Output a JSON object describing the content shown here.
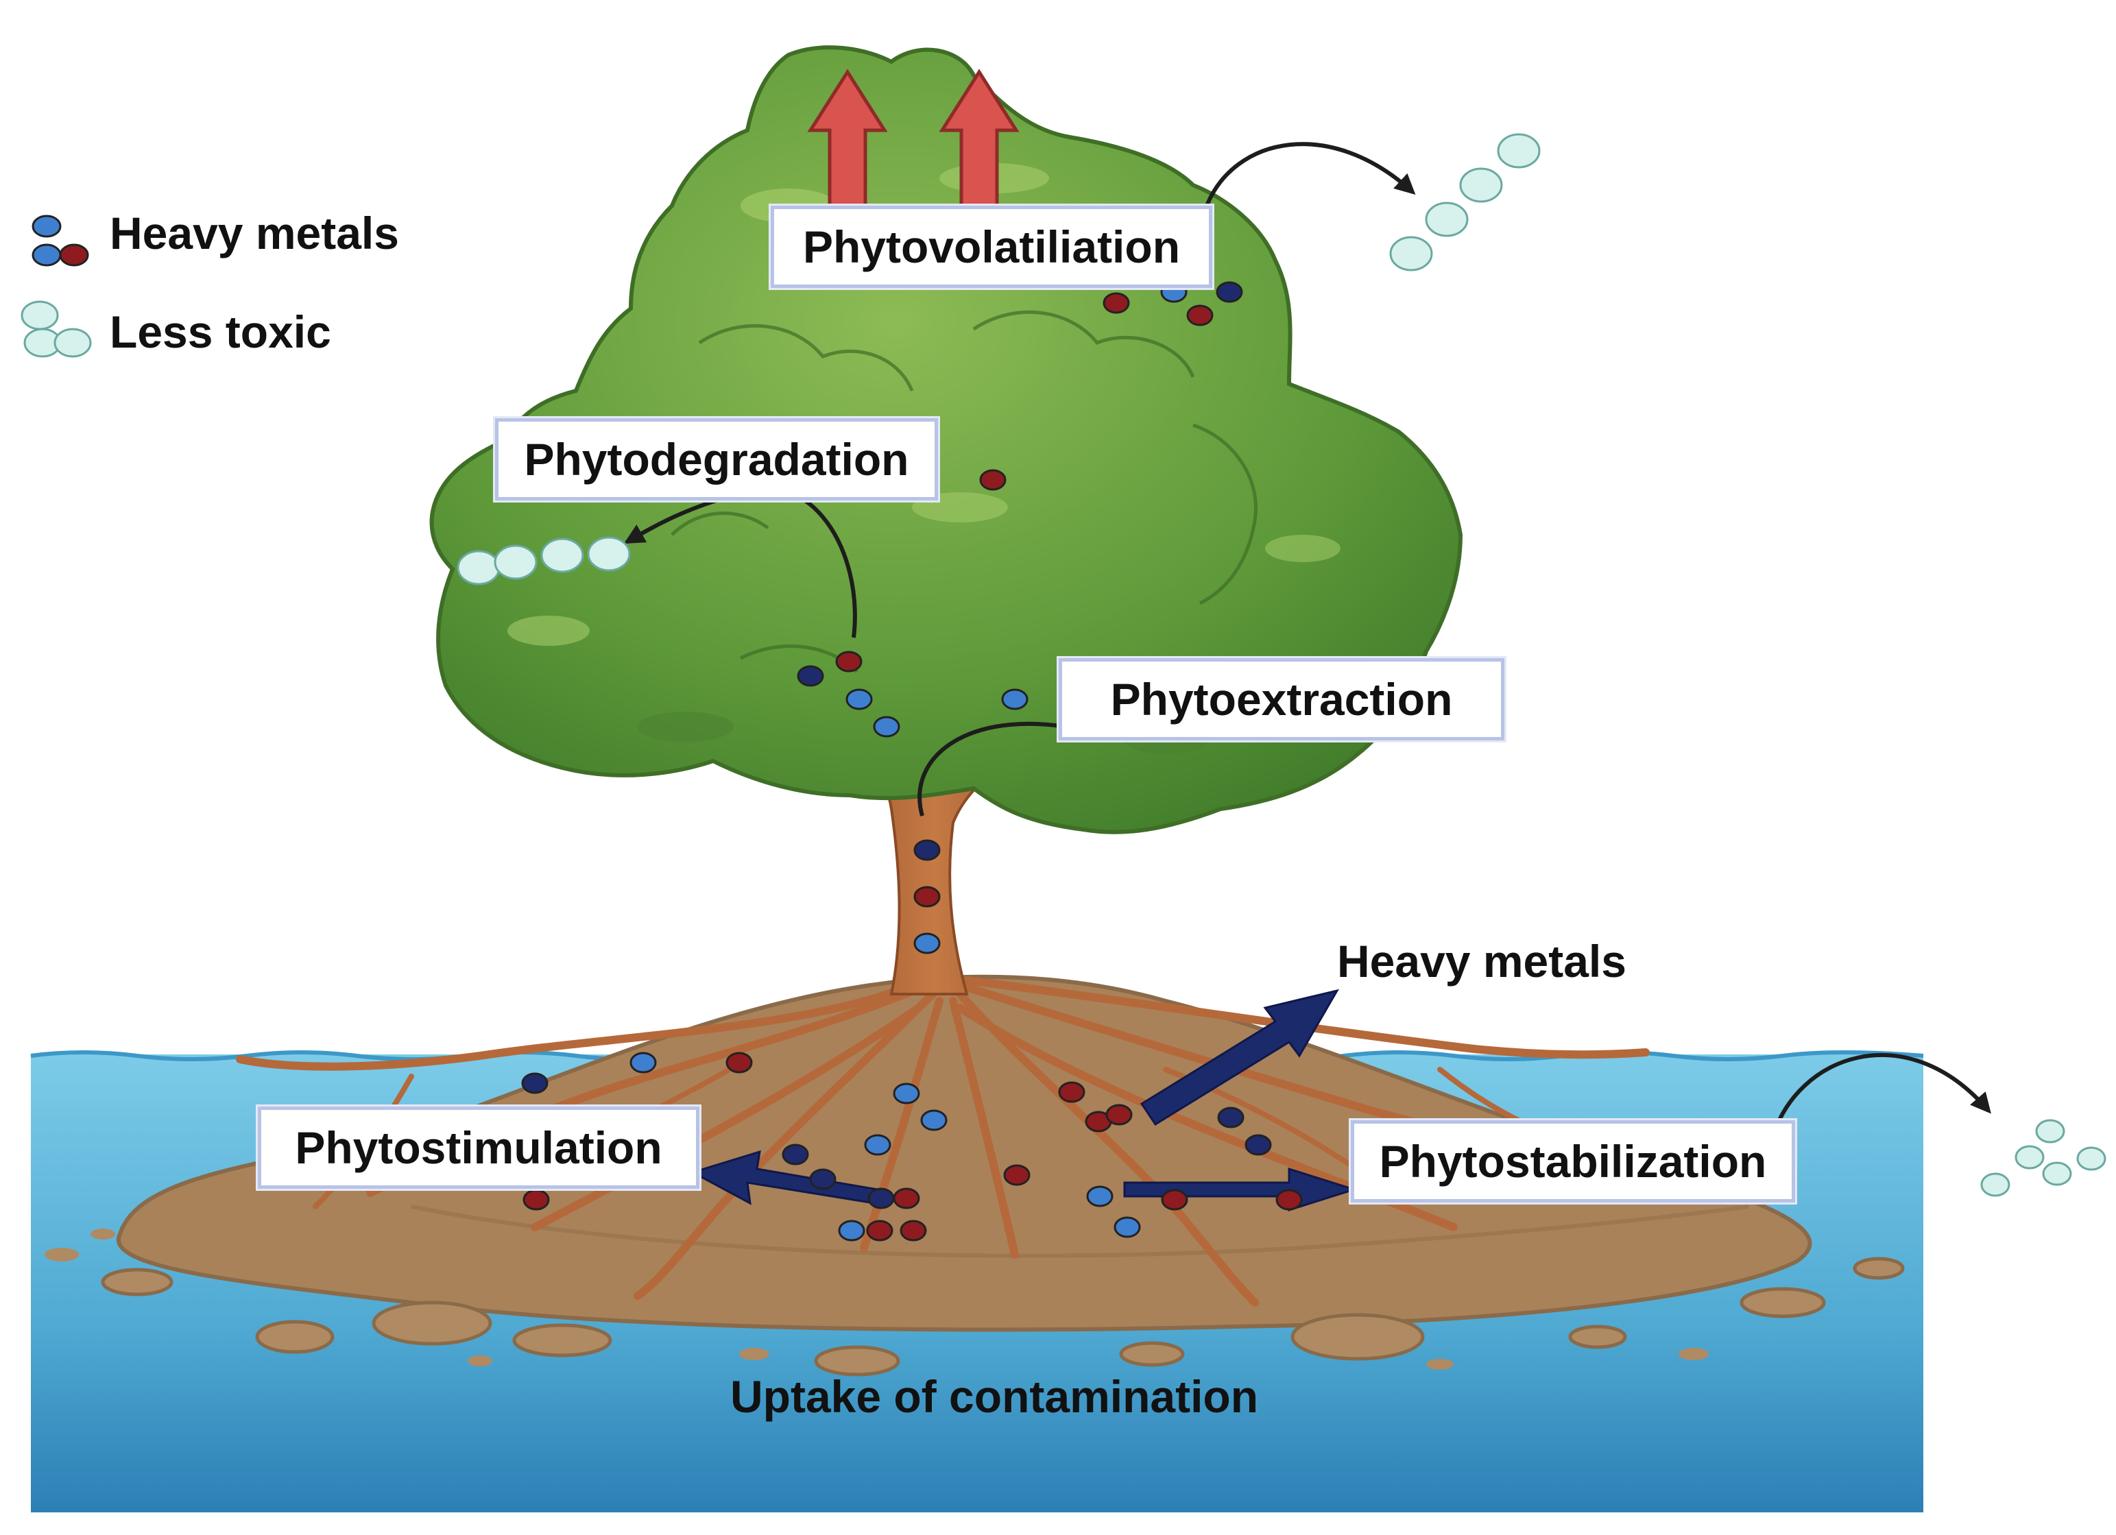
{
  "legend": {
    "heavy_metals": "Heavy metals",
    "less_toxic": "Less toxic"
  },
  "labels": {
    "phytovolatiliation": "Phytovolatiliation",
    "phytodegradation": "Phytodegradation",
    "phytoextraction": "Phytoextraction",
    "phytostimulation": "Phytostimulation",
    "phytostabilization": "Phytostabilization",
    "heavy_metals_arrow": "Heavy metals",
    "uptake": "Uptake of contamination"
  },
  "colors": {
    "metal_blue": "#3f7fd0",
    "metal_navy": "#1e2a6b",
    "metal_red": "#8e1b1f",
    "less_toxic": "#d7f1ec",
    "foliage": "#5f9a3a",
    "trunk": "#b5693a",
    "soil": "#a9825a",
    "water": "#6fbfe0",
    "arrow_red": "#d9534f",
    "arrow_navy": "#1b2a6b"
  }
}
